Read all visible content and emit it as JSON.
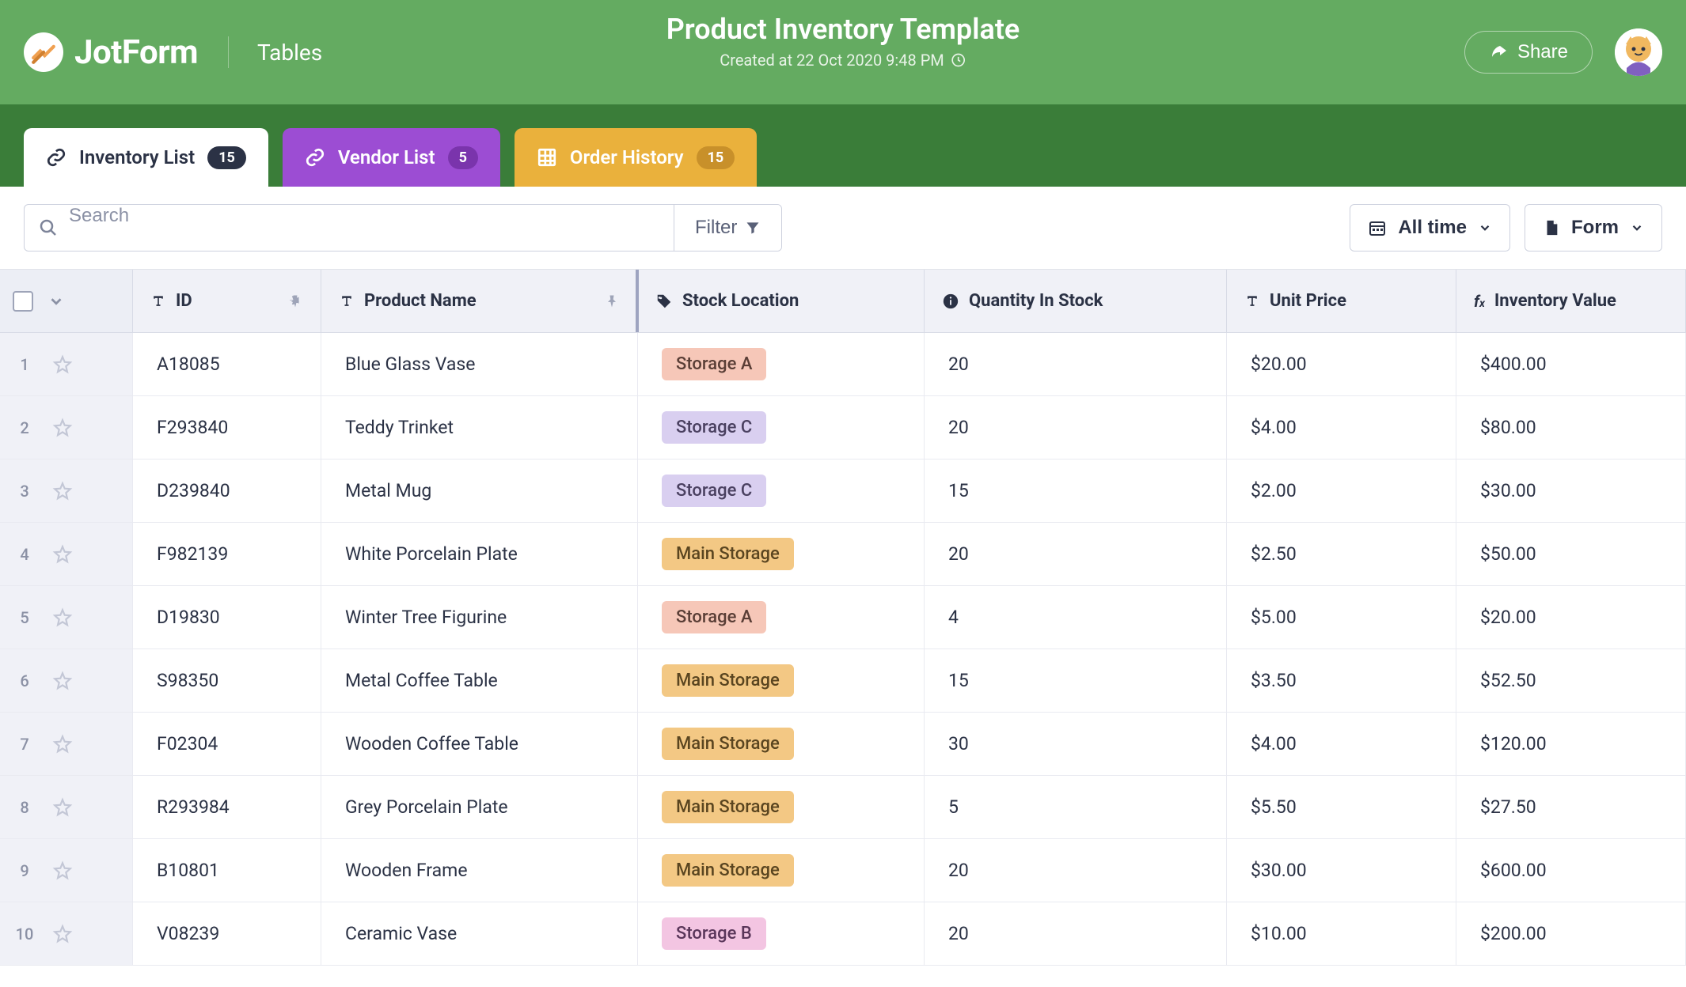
{
  "colors": {
    "header_bg": "#64ab61",
    "tabstrip_bg": "#3a7d39",
    "tab_purple": "#9c4dd3",
    "tab_orange": "#eab13c",
    "table_header_bg": "#f0f1f7",
    "row_border": "#e9eaf1",
    "text_primary": "#2b3245",
    "text_muted": "#8b91a5"
  },
  "header": {
    "brand": "JotForm",
    "brand_sub": "Tables",
    "title": "Product Inventory Template",
    "created_label": "Created at 22 Oct 2020 9:48 PM",
    "share_label": "Share"
  },
  "tabs": [
    {
      "label": "Inventory List",
      "count": "15",
      "variant": "active"
    },
    {
      "label": "Vendor List",
      "count": "5",
      "variant": "purple"
    },
    {
      "label": "Order History",
      "count": "15",
      "variant": "orange"
    }
  ],
  "toolbar": {
    "search_placeholder": "Search",
    "filter_label": "Filter",
    "timerange_label": "All time",
    "form_label": "Form"
  },
  "table": {
    "columns": [
      {
        "label": "ID",
        "icon": "text",
        "pinnable": true
      },
      {
        "label": "Product Name",
        "icon": "text",
        "pinnable": true
      },
      {
        "label": "Stock Location",
        "icon": "tag",
        "pinnable": false
      },
      {
        "label": "Quantity In Stock",
        "icon": "info",
        "pinnable": false
      },
      {
        "label": "Unit Price",
        "icon": "text",
        "pinnable": false
      },
      {
        "label": "Inventory Value",
        "icon": "fx",
        "pinnable": false
      }
    ],
    "location_styles": {
      "Storage A": {
        "bg": "#f6c7b8",
        "fg": "#5a3e36"
      },
      "Storage B": {
        "bg": "#f3c5e2",
        "fg": "#5a365a"
      },
      "Storage C": {
        "bg": "#d9cff0",
        "fg": "#4a4060"
      },
      "Main Storage": {
        "bg": "#f3c884",
        "fg": "#5a4520"
      }
    },
    "rows": [
      {
        "idx": "1",
        "id": "A18085",
        "name": "Blue Glass Vase",
        "location": "Storage A",
        "qty": "20",
        "price": "$20.00",
        "value": "$400.00"
      },
      {
        "idx": "2",
        "id": "F293840",
        "name": "Teddy Trinket",
        "location": "Storage C",
        "qty": "20",
        "price": "$4.00",
        "value": "$80.00"
      },
      {
        "idx": "3",
        "id": "D239840",
        "name": "Metal Mug",
        "location": "Storage C",
        "qty": "15",
        "price": "$2.00",
        "value": "$30.00"
      },
      {
        "idx": "4",
        "id": "F982139",
        "name": "White Porcelain Plate",
        "location": "Main Storage",
        "qty": "20",
        "price": "$2.50",
        "value": "$50.00"
      },
      {
        "idx": "5",
        "id": "D19830",
        "name": "Winter Tree Figurine",
        "location": "Storage A",
        "qty": "4",
        "price": "$5.00",
        "value": "$20.00"
      },
      {
        "idx": "6",
        "id": "S98350",
        "name": "Metal Coffee Table",
        "location": "Main Storage",
        "qty": "15",
        "price": "$3.50",
        "value": "$52.50"
      },
      {
        "idx": "7",
        "id": "F02304",
        "name": "Wooden Coffee Table",
        "location": "Main Storage",
        "qty": "30",
        "price": "$4.00",
        "value": "$120.00"
      },
      {
        "idx": "8",
        "id": "R293984",
        "name": "Grey Porcelain Plate",
        "location": "Main Storage",
        "qty": "5",
        "price": "$5.50",
        "value": "$27.50"
      },
      {
        "idx": "9",
        "id": "B10801",
        "name": "Wooden Frame",
        "location": "Main Storage",
        "qty": "20",
        "price": "$30.00",
        "value": "$600.00"
      },
      {
        "idx": "10",
        "id": "V08239",
        "name": "Ceramic Vase",
        "location": "Storage B",
        "qty": "20",
        "price": "$10.00",
        "value": "$200.00"
      }
    ]
  }
}
